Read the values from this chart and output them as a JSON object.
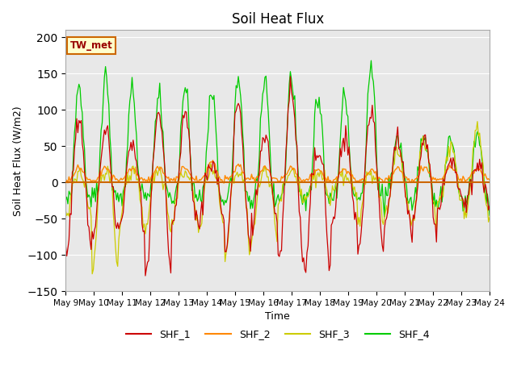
{
  "title": "Soil Heat Flux",
  "xlabel": "Time",
  "ylabel": "Soil Heat Flux (W/m2)",
  "ylim": [
    -150,
    210
  ],
  "yticks": [
    -150,
    -100,
    -50,
    0,
    50,
    100,
    150,
    200
  ],
  "xlim": [
    0,
    360
  ],
  "colors": {
    "SHF_1": "#cc0000",
    "SHF_2": "#ff8800",
    "SHF_3": "#cccc00",
    "SHF_4": "#00cc00"
  },
  "legend_label": "TW_met",
  "bg_color": "#e8e8e8",
  "hline_color": "#cc6600",
  "x_tick_labels": [
    "May 9",
    "May 10",
    "May 11",
    "May 12",
    "May 13",
    "May 14",
    "May 15",
    "May 16",
    "May 17",
    "May 18",
    "May 19",
    "May 20",
    "May 21",
    "May 22",
    "May 23",
    "May 24"
  ],
  "x_tick_positions": [
    0,
    24,
    48,
    72,
    96,
    120,
    144,
    168,
    192,
    216,
    240,
    264,
    288,
    312,
    336,
    360
  ],
  "n_days": 16,
  "pts_per_day": 24,
  "shf1_pos": [
    88,
    75,
    50,
    95,
    100,
    25,
    110,
    65,
    135,
    40,
    65,
    100,
    60,
    60,
    30,
    20
  ],
  "shf1_neg": [
    100,
    75,
    65,
    130,
    55,
    60,
    100,
    60,
    115,
    125,
    55,
    100,
    55,
    80,
    20,
    30
  ],
  "shf2_pos": [
    12,
    12,
    12,
    12,
    12,
    22,
    15,
    12,
    12,
    8,
    10,
    8,
    12,
    12,
    12,
    10
  ],
  "shf2_neg": [
    5,
    5,
    5,
    5,
    5,
    5,
    5,
    5,
    5,
    5,
    5,
    5,
    5,
    5,
    5,
    5
  ],
  "shf3_pos": [
    10,
    18,
    15,
    15,
    12,
    15,
    12,
    12,
    12,
    10,
    10,
    10,
    45,
    60,
    55,
    75
  ],
  "shf3_neg": [
    50,
    120,
    65,
    70,
    55,
    65,
    105,
    75,
    30,
    25,
    20,
    60,
    50,
    55,
    25,
    50
  ],
  "shf4_pos": [
    132,
    143,
    125,
    125,
    130,
    128,
    140,
    143,
    145,
    112,
    120,
    160,
    55,
    60,
    60,
    62
  ],
  "shf4_neg": [
    25,
    25,
    25,
    25,
    25,
    25,
    25,
    25,
    25,
    25,
    25,
    25,
    30,
    30,
    30,
    30
  ]
}
